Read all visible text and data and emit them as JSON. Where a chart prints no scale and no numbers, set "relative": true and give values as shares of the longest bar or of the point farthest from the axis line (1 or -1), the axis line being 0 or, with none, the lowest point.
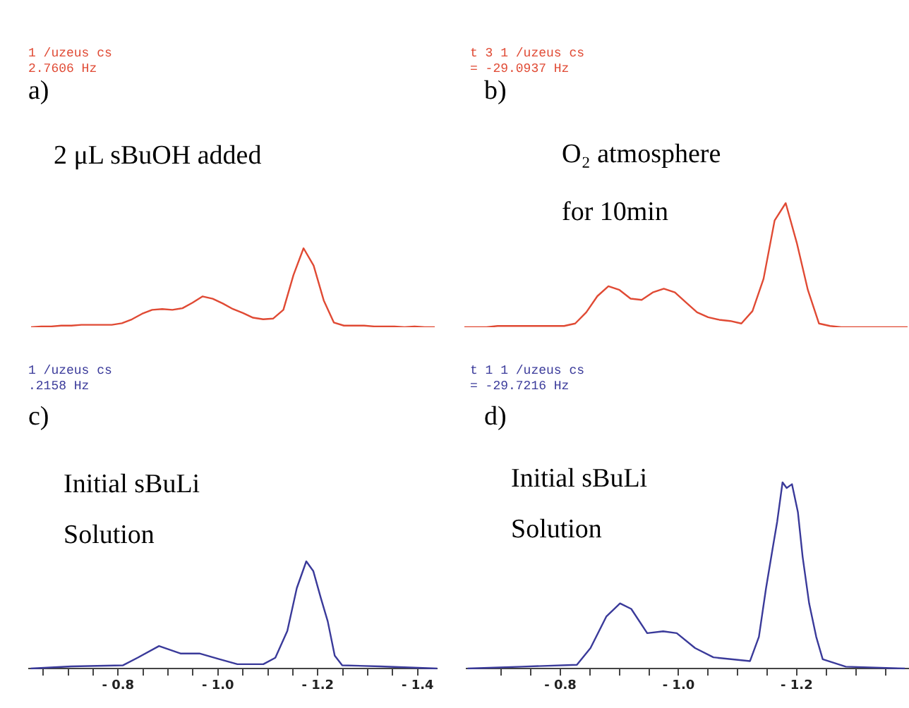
{
  "chart_data": [
    {
      "type": "line",
      "title": "a)",
      "annotations": [
        "1  /uzeus  cs",
        "2.7606 Hz",
        "2 μL sBuOH added"
      ],
      "relative": true,
      "tick_labels": false,
      "grid": false,
      "categories": [
        null,
        null,
        null,
        null,
        null,
        null,
        null,
        null,
        null,
        null,
        null,
        null,
        null,
        null,
        null,
        null,
        null,
        null,
        null,
        null,
        null,
        null,
        null,
        null,
        null,
        null,
        null,
        null,
        null,
        null,
        null,
        null,
        null,
        null,
        null,
        null,
        null,
        null,
        null,
        null,
        null
      ],
      "series": [
        {
          "color": "#e04a34",
          "values": [
            0,
            0.01,
            0.01,
            0.02,
            0.02,
            0.03,
            0.03,
            0.03,
            0.03,
            0.05,
            0.1,
            0.17,
            0.22,
            0.23,
            0.22,
            0.24,
            0.31,
            0.39,
            0.36,
            0.3,
            0.23,
            0.18,
            0.12,
            0.1,
            0.11,
            0.22,
            0.66,
            1,
            0.78,
            0.34,
            0.06,
            0.02,
            0.02,
            0.02,
            0.01,
            0.01,
            0.01,
            0,
            0.01,
            0,
            0
          ]
        }
      ]
    },
    {
      "type": "line",
      "title": "b)",
      "annotations": [
        "t  3  1  /uzeus  cs",
        "= -29.0937 Hz",
        "O₂ atmosphere",
        "for 10min"
      ],
      "relative": true,
      "tick_labels": false,
      "grid": false,
      "categories": [
        null,
        null,
        null,
        null,
        null,
        null,
        null,
        null,
        null,
        null,
        null,
        null,
        null,
        null,
        null,
        null,
        null,
        null,
        null,
        null,
        null,
        null,
        null,
        null,
        null,
        null,
        null,
        null,
        null,
        null,
        null,
        null,
        null,
        null,
        null,
        null,
        null,
        null,
        null,
        null,
        null
      ],
      "series": [
        {
          "color": "#e04a34",
          "values": [
            0,
            0,
            0,
            0.01,
            0.01,
            0.01,
            0.01,
            0.01,
            0.01,
            0.01,
            0.03,
            0.12,
            0.25,
            0.33,
            0.3,
            0.23,
            0.22,
            0.28,
            0.31,
            0.28,
            0.2,
            0.12,
            0.08,
            0.06,
            0.05,
            0.03,
            0.13,
            0.39,
            0.86,
            1,
            0.68,
            0.3,
            0.03,
            0.01,
            0,
            0,
            0,
            0,
            0,
            0,
            0
          ]
        }
      ]
    },
    {
      "type": "line",
      "title": "c)",
      "annotations": [
        "1  /uzeus  cs",
        ".2158 Hz",
        "Initial sBuLi",
        "Solution"
      ],
      "relative": true,
      "xlim": [
        -0.62,
        -1.44
      ],
      "grid": false,
      "xticks": [
        {
          "value": -0.65,
          "label": null
        },
        {
          "value": -0.7,
          "label": null
        },
        {
          "value": -0.75,
          "label": null
        },
        {
          "value": -0.8,
          "label": "- 0.8"
        },
        {
          "value": -0.85,
          "label": null
        },
        {
          "value": -0.9,
          "label": null
        },
        {
          "value": -0.95,
          "label": null
        },
        {
          "value": -1.0,
          "label": "- 1.0"
        },
        {
          "value": -1.05,
          "label": null
        },
        {
          "value": -1.1,
          "label": null
        },
        {
          "value": -1.15,
          "label": null
        },
        {
          "value": -1.2,
          "label": "- 1.2"
        },
        {
          "value": -1.25,
          "label": null
        },
        {
          "value": -1.3,
          "label": null
        },
        {
          "value": -1.35,
          "label": null
        },
        {
          "value": -1.4,
          "label": "- 1.4"
        }
      ],
      "x": [
        -0.625,
        -0.706,
        -0.81,
        -0.839,
        -0.882,
        -0.925,
        -0.963,
        -1.001,
        -1.039,
        -1.091,
        -1.115,
        -1.139,
        -1.158,
        -1.177,
        -1.191,
        -1.206,
        -1.22,
        -1.234,
        -1.249,
        -1.325,
        -1.439
      ],
      "series": [
        {
          "color": "#3a3a9a",
          "values": [
            0,
            0.02,
            0.03,
            0.1,
            0.21,
            0.14,
            0.14,
            0.09,
            0.04,
            0.04,
            0.1,
            0.35,
            0.75,
            1,
            0.91,
            0.66,
            0.44,
            0.12,
            0.03,
            0.02,
            0
          ]
        }
      ]
    },
    {
      "type": "line",
      "title": "d)",
      "annotations": [
        "t  1  1  /uzeus  cs",
        "= -29.7216 Hz",
        "Initial sBuLi",
        "Solution"
      ],
      "relative": true,
      "xlim": [
        -0.64,
        -1.39
      ],
      "grid": false,
      "xticks": [
        {
          "value": -0.7,
          "label": null
        },
        {
          "value": -0.75,
          "label": null
        },
        {
          "value": -0.8,
          "label": "- 0.8"
        },
        {
          "value": -0.85,
          "label": null
        },
        {
          "value": -0.9,
          "label": null
        },
        {
          "value": -0.95,
          "label": null
        },
        {
          "value": -1.0,
          "label": "- 1.0"
        },
        {
          "value": -1.05,
          "label": null
        },
        {
          "value": -1.1,
          "label": null
        },
        {
          "value": -1.15,
          "label": null
        },
        {
          "value": -1.2,
          "label": "- 1.2"
        },
        {
          "value": -1.25,
          "label": null
        },
        {
          "value": -1.3,
          "label": null
        },
        {
          "value": -1.35,
          "label": null
        }
      ],
      "x": [
        -0.643,
        -0.735,
        -0.828,
        -0.851,
        -0.878,
        -0.901,
        -0.92,
        -0.947,
        -0.974,
        -0.997,
        -1.028,
        -1.059,
        -1.121,
        -1.136,
        -1.148,
        -1.159,
        -1.167,
        -1.176,
        -1.183,
        -1.192,
        -1.202,
        -1.21,
        -1.221,
        -1.233,
        -1.244,
        -1.283,
        -1.383
      ],
      "series": [
        {
          "color": "#3a3a9a",
          "values": [
            0,
            0.01,
            0.02,
            0.11,
            0.28,
            0.35,
            0.32,
            0.19,
            0.2,
            0.19,
            0.11,
            0.06,
            0.04,
            0.17,
            0.43,
            0.64,
            0.79,
            1,
            0.97,
            0.99,
            0.84,
            0.6,
            0.35,
            0.17,
            0.05,
            0.01,
            0
          ]
        }
      ]
    }
  ]
}
